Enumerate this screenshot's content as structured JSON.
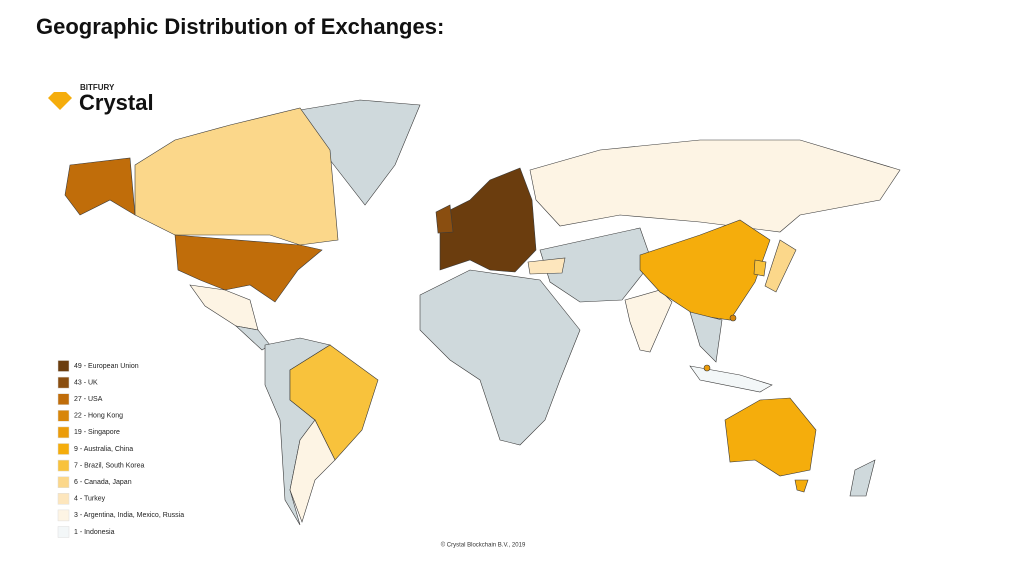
{
  "header": {
    "title": "Geographic Distribution of Exchanges:"
  },
  "logo": {
    "overline": "BITFURY",
    "name": "Crystal",
    "color": "#f5ad0c"
  },
  "legend": {
    "items": [
      {
        "label": "49 - European Union",
        "color": "#6b3d0e"
      },
      {
        "label": "43 - UK",
        "color": "#8a4e10"
      },
      {
        "label": "27 - USA",
        "color": "#c06d0a"
      },
      {
        "label": "22 - Hong Kong",
        "color": "#d8860a"
      },
      {
        "label": "19 - Singapore",
        "color": "#eb9c0a"
      },
      {
        "label": "9 - Australia, China",
        "color": "#f5ad0c"
      },
      {
        "label": "7 - Brazil, South Korea",
        "color": "#f8c23c"
      },
      {
        "label": "6 - Canada, Japan",
        "color": "#fbd78a"
      },
      {
        "label": "4 - Turkey",
        "color": "#fde6bd"
      },
      {
        "label": "3 - Argentina, India, Mexico, Russia",
        "color": "#fdf4e4"
      },
      {
        "label": "1 - Indonesia",
        "color": "#f3f7f8"
      }
    ]
  },
  "footer": {
    "copyright": "© Crystal Blockchain B.V., 2019"
  }
}
